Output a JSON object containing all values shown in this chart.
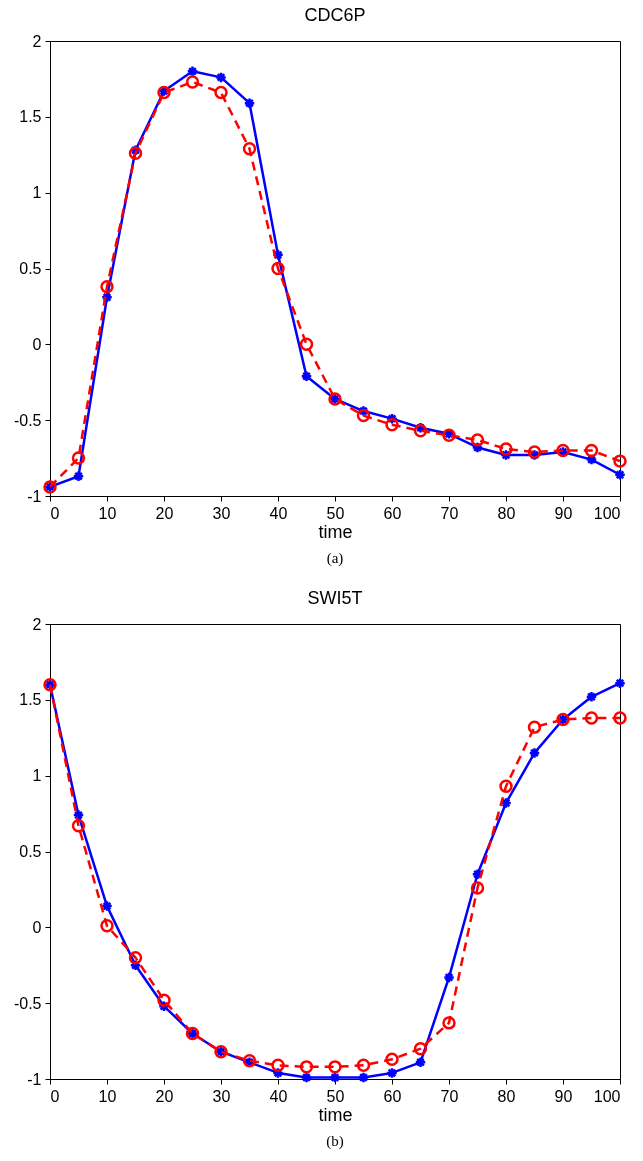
{
  "chart_data": [
    {
      "type": "line",
      "title": "CDC6P",
      "xlabel": "time",
      "x": [
        0,
        5,
        10,
        15,
        20,
        25,
        30,
        35,
        40,
        45,
        50,
        55,
        60,
        65,
        70,
        75,
        80,
        85,
        90,
        95,
        100
      ],
      "xlim": [
        0,
        100
      ],
      "xticks": [
        0,
        10,
        20,
        30,
        40,
        50,
        60,
        70,
        80,
        90,
        100
      ],
      "ylim": [
        -1,
        2
      ],
      "yticks": [
        -1,
        -0.5,
        0,
        0.5,
        1,
        1.5,
        2
      ],
      "grid": false,
      "annotations": [
        "(a)"
      ],
      "series": [
        {
          "color": "#0000ff",
          "marker": "cross",
          "line_style": "solid",
          "values": [
            -0.94,
            -0.87,
            0.31,
            1.28,
            1.67,
            1.8,
            1.76,
            1.59,
            0.59,
            -0.21,
            -0.36,
            -0.44,
            -0.49,
            -0.55,
            -0.59,
            -0.68,
            -0.73,
            -0.73,
            -0.71,
            -0.76,
            -0.86
          ]
        },
        {
          "color": "#ff0000",
          "marker": "circle",
          "line_style": "dashed",
          "values": [
            -0.94,
            -0.75,
            0.38,
            1.26,
            1.66,
            1.73,
            1.66,
            1.29,
            0.5,
            0.0,
            -0.36,
            -0.47,
            -0.53,
            -0.57,
            -0.6,
            -0.63,
            -0.69,
            -0.71,
            -0.7,
            -0.7,
            -0.77
          ]
        }
      ]
    },
    {
      "type": "line",
      "title": "SWI5T",
      "xlabel": "time",
      "x": [
        0,
        5,
        10,
        15,
        20,
        25,
        30,
        35,
        40,
        45,
        50,
        55,
        60,
        65,
        70,
        75,
        80,
        85,
        90,
        95,
        100
      ],
      "xlim": [
        0,
        100
      ],
      "xticks": [
        0,
        10,
        20,
        30,
        40,
        50,
        60,
        70,
        80,
        90,
        100
      ],
      "ylim": [
        -1,
        2
      ],
      "yticks": [
        -1,
        -0.5,
        0,
        0.5,
        1,
        1.5,
        2
      ],
      "grid": false,
      "annotations": [
        "(b)"
      ],
      "series": [
        {
          "color": "#0000ff",
          "marker": "cross",
          "line_style": "solid",
          "values": [
            1.6,
            0.74,
            0.14,
            -0.25,
            -0.52,
            -0.7,
            -0.82,
            -0.89,
            -0.96,
            -0.99,
            -0.99,
            -0.99,
            -0.96,
            -0.89,
            -0.33,
            0.35,
            0.82,
            1.15,
            1.37,
            1.52,
            1.61
          ]
        },
        {
          "color": "#ff0000",
          "marker": "circle",
          "line_style": "dashed",
          "values": [
            1.6,
            0.67,
            0.01,
            -0.2,
            -0.48,
            -0.7,
            -0.82,
            -0.88,
            -0.91,
            -0.92,
            -0.92,
            -0.91,
            -0.87,
            -0.8,
            -0.63,
            0.26,
            0.93,
            1.32,
            1.37,
            1.38,
            1.38
          ]
        }
      ]
    }
  ]
}
